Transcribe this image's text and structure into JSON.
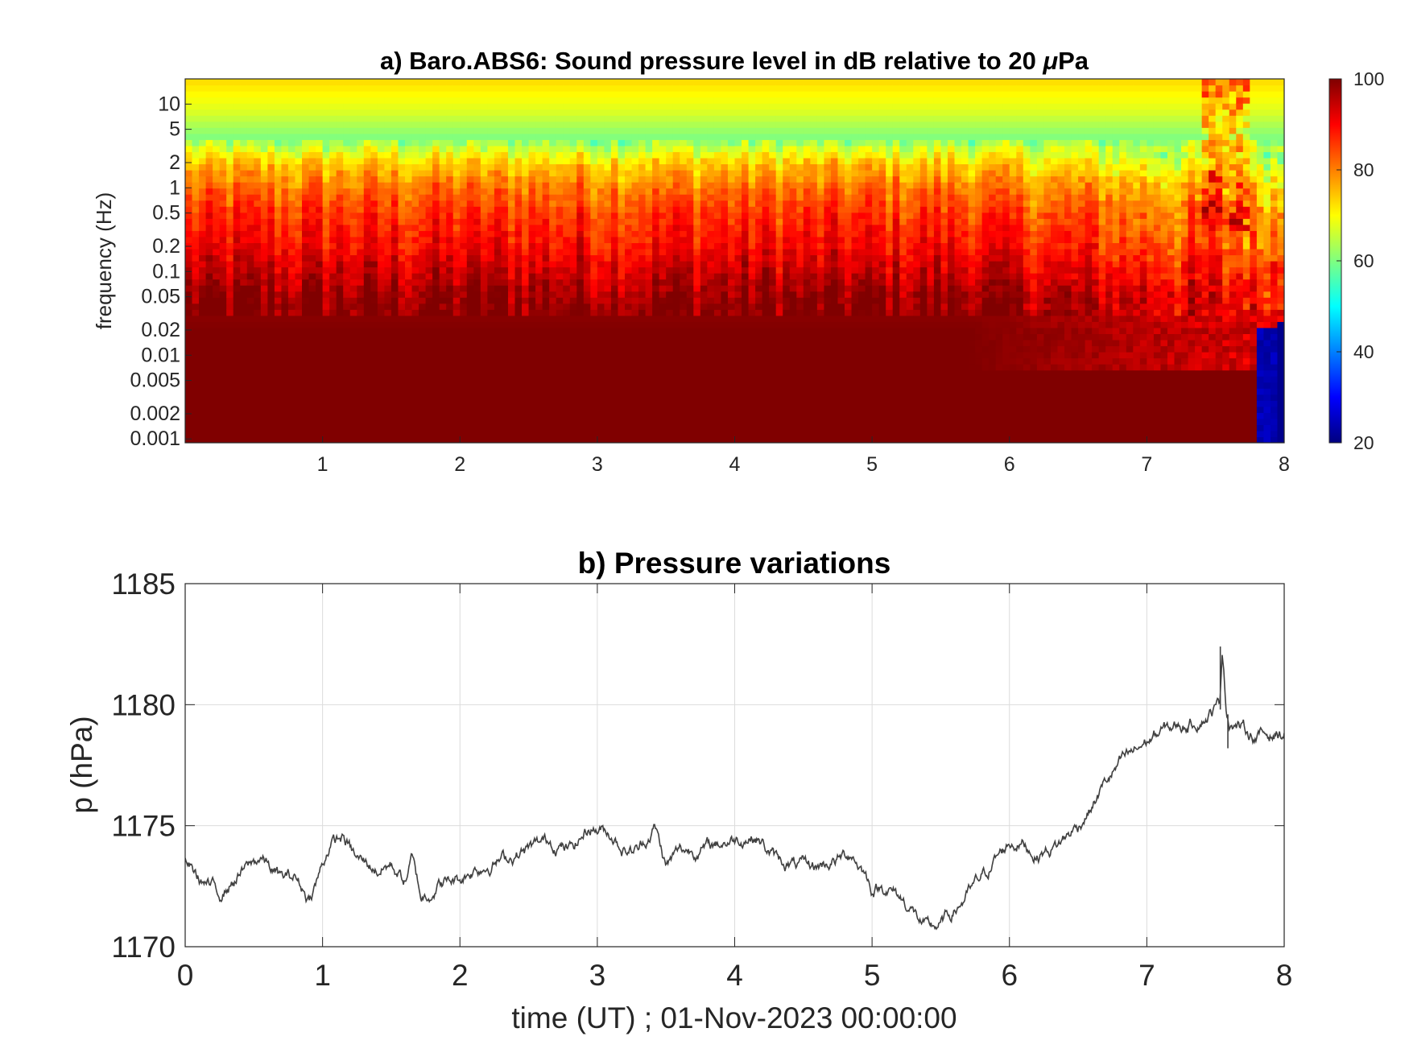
{
  "charts": {
    "spectrogram": {
      "type": "heatmap",
      "title_prefix": "a) Baro.ABS6: Sound pressure level in dB relative to 20 ",
      "title_mu": "μ",
      "title_suffix": "Pa",
      "ylabel": "frequency (Hz)",
      "xlim": [
        0,
        8
      ],
      "ylim": [
        0.0009,
        20
      ],
      "yscale": "log",
      "x_ticks": [
        "1",
        "2",
        "3",
        "4",
        "5",
        "6",
        "7",
        "8"
      ],
      "y_ticks": [
        "0.001",
        "0.002",
        "0.005",
        "0.01",
        "0.02",
        "0.05",
        "0.1",
        "0.2",
        "0.5",
        "1",
        "2",
        "5",
        "10"
      ],
      "colorbar": {
        "min": 20,
        "max": 100,
        "ticks": [
          "20",
          "40",
          "60",
          "80",
          "100"
        ],
        "colormap": "jet"
      },
      "level_profile": [
        {
          "freq": 20,
          "level": 73
        },
        {
          "freq": 8,
          "level": 67
        },
        {
          "freq": 4,
          "level": 60
        },
        {
          "freq": 2,
          "level": 74
        },
        {
          "freq": 1,
          "level": 81
        },
        {
          "freq": 0.5,
          "level": 86
        },
        {
          "freq": 0.2,
          "level": 90
        },
        {
          "freq": 0.1,
          "level": 94
        },
        {
          "freq": 0.05,
          "level": 98
        },
        {
          "freq": 0.02,
          "level": 100
        },
        {
          "freq": 0.001,
          "level": 100
        }
      ]
    },
    "pressure": {
      "type": "line",
      "title": "b) Pressure variations",
      "xlabel": "time (UT) ; 01-Nov-2023 00:00:00",
      "ylabel": "p (hPa)",
      "xlim": [
        0,
        8
      ],
      "ylim": [
        1170,
        1185
      ],
      "x_ticks": [
        "0",
        "1",
        "2",
        "3",
        "4",
        "5",
        "6",
        "7",
        "8"
      ],
      "y_ticks": [
        "1170",
        "1175",
        "1180",
        "1185"
      ],
      "grid": true,
      "line_color": "#404040"
    }
  },
  "chart_data": [
    {
      "type": "heatmap",
      "title": "a) Baro.ABS6: Sound pressure level in dB relative to 20 μPa",
      "ylabel": "frequency (Hz)",
      "xlim": [
        0,
        8
      ],
      "ylim": [
        0.001,
        20
      ],
      "yscale": "log",
      "colorbar_range": [
        20,
        100
      ]
    },
    {
      "type": "line",
      "title": "b) Pressure variations",
      "xlabel": "time (UT) ; 01-Nov-2023 00:00:00",
      "ylabel": "p (hPa)",
      "xlim": [
        0,
        8
      ],
      "ylim": [
        1170,
        1185
      ],
      "grid": true,
      "series": [
        {
          "x": [
            0,
            0.1,
            0.25,
            0.4,
            0.55,
            0.7,
            0.8,
            0.9,
            0.95,
            1.05,
            1.15,
            1.25,
            1.4,
            1.5,
            1.6,
            1.65,
            1.72,
            1.85,
            2.0,
            2.1,
            2.3,
            2.5,
            2.65,
            2.8,
            2.95,
            3.1,
            3.2,
            3.3,
            3.42,
            3.5,
            3.6,
            3.75,
            3.9,
            4.05,
            4.15,
            4.3,
            4.45,
            4.6,
            4.75,
            4.85,
            4.95,
            5.0,
            5.1,
            5.25,
            5.4,
            5.5,
            5.6,
            5.75,
            5.9,
            6.0,
            6.1,
            6.2,
            6.35,
            6.5,
            6.6,
            6.7,
            6.8,
            6.9,
            7.0,
            7.15,
            7.3,
            7.45,
            7.53,
            7.55,
            7.58,
            7.6,
            7.7,
            7.8,
            7.9,
            8.0
          ],
          "y": [
            1173.5,
            1172.8,
            1172.2,
            1173.0,
            1173.7,
            1172.8,
            1172.9,
            1172.0,
            1172.6,
            1174.2,
            1174.5,
            1173.6,
            1173.2,
            1173.4,
            1172.7,
            1173.6,
            1172.0,
            1172.6,
            1172.8,
            1173.2,
            1173.6,
            1174.0,
            1174.4,
            1174.0,
            1175.0,
            1174.7,
            1174.0,
            1174.0,
            1175.0,
            1173.3,
            1174.0,
            1174.0,
            1174.3,
            1174.5,
            1174.6,
            1173.6,
            1173.3,
            1173.3,
            1173.6,
            1173.9,
            1173.0,
            1172.4,
            1172.5,
            1171.8,
            1170.7,
            1170.9,
            1171.5,
            1172.5,
            1173.6,
            1174.3,
            1174.3,
            1173.8,
            1174.2,
            1175.0,
            1175.8,
            1176.8,
            1177.5,
            1178.0,
            1178.5,
            1179.0,
            1179.2,
            1179.6,
            1180.0,
            1182.4,
            1179.8,
            1179.4,
            1179.0,
            1178.7,
            1178.8,
            1178.8
          ]
        }
      ]
    }
  ]
}
